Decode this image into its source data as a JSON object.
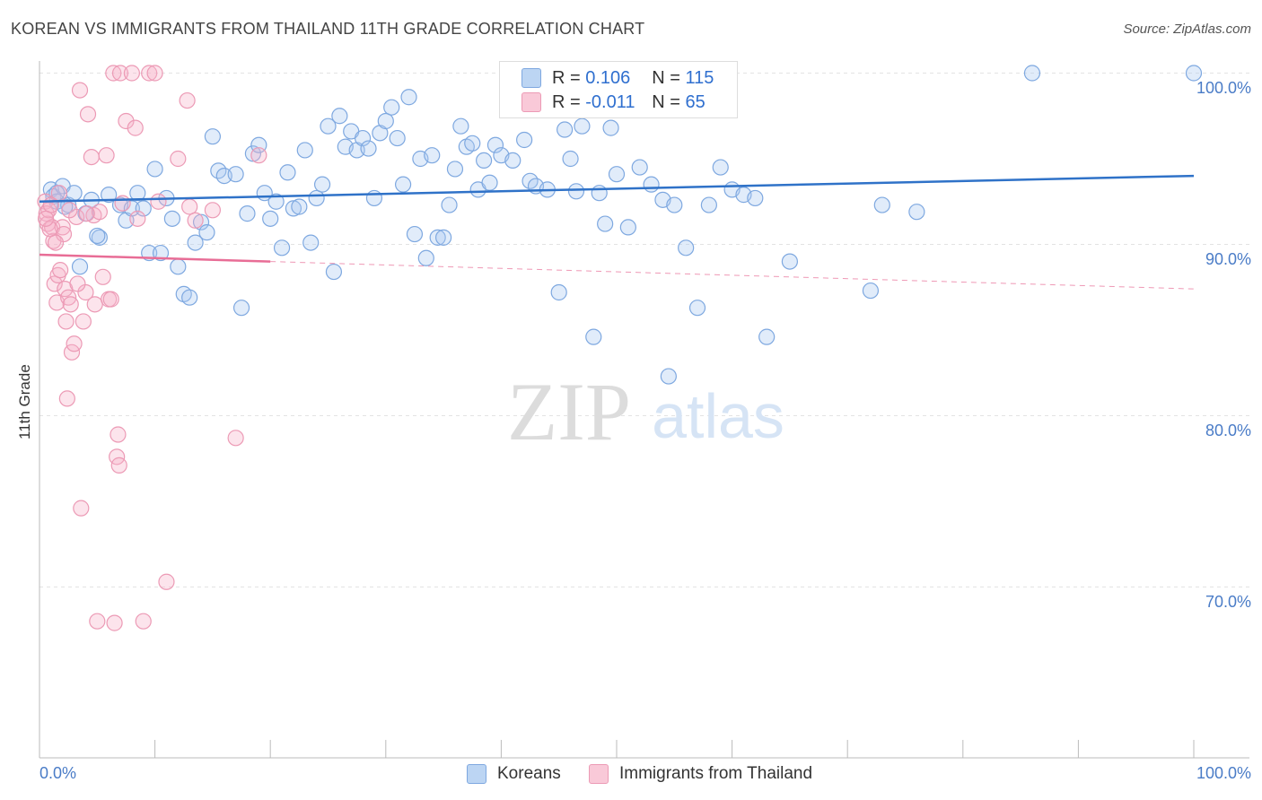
{
  "header": {
    "title": "KOREAN VS IMMIGRANTS FROM THAILAND 11TH GRADE CORRELATION CHART",
    "source": "Source: ZipAtlas.com"
  },
  "watermark": {
    "zip": "ZIP",
    "atlas": "atlas"
  },
  "legend": {
    "r_label": "R =",
    "n_label": "N =",
    "series": [
      {
        "name": "Koreans",
        "r": "0.106",
        "n": "115",
        "color": "#a8c8f0"
      },
      {
        "name": "Immigrants from Thailand",
        "r": "-0.011",
        "n": "65",
        "color": "#f6b3c8"
      }
    ]
  },
  "colors": {
    "blue_stroke": "#7ea8e0",
    "blue_fill": "rgba(168,200,240,0.35)",
    "blue_line": "#2f72c8",
    "pink_stroke": "#ec9ab5",
    "pink_fill": "rgba(246,179,200,0.35)",
    "pink_line": "#e86d96",
    "tick_text": "#4a7cc7"
  },
  "chart_data": {
    "type": "scatter",
    "title": "KOREAN VS IMMIGRANTS FROM THAILAND 11TH GRADE CORRELATION CHART",
    "xlabel": "",
    "ylabel": "11th Grade",
    "xlim": [
      0,
      100
    ],
    "ylim": [
      60,
      101.5
    ],
    "x_tick_labels": [
      "0.0%",
      "100.0%"
    ],
    "y_ticks": [
      {
        "value": 100,
        "label": "100.0%"
      },
      {
        "value": 90,
        "label": "90.0%"
      },
      {
        "value": 80,
        "label": "80.0%"
      },
      {
        "value": 70,
        "label": "70.0%"
      }
    ],
    "grid": "horizontal dashed",
    "legend_position": "top-center",
    "series": [
      {
        "name": "Koreans",
        "trend": {
          "x": [
            0,
            100
          ],
          "y": [
            92.5,
            94.0
          ],
          "style": "solid"
        },
        "points": [
          [
            1,
            93.2
          ],
          [
            1.2,
            92.8
          ],
          [
            1.5,
            92.5
          ],
          [
            2,
            93.4
          ],
          [
            2.5,
            92.3
          ],
          [
            3,
            93.0
          ],
          [
            4,
            91.8
          ],
          [
            4.5,
            92.6
          ],
          [
            5.2,
            90.4
          ],
          [
            6,
            92.9
          ],
          [
            7,
            92.3
          ],
          [
            7.5,
            91.4
          ],
          [
            8,
            92.1
          ],
          [
            8.5,
            93.0
          ],
          [
            9,
            92.1
          ],
          [
            9.5,
            89.5
          ],
          [
            10,
            94.4
          ],
          [
            10.5,
            89.5
          ],
          [
            11,
            92.7
          ],
          [
            11.5,
            91.5
          ],
          [
            12,
            88.7
          ],
          [
            12.5,
            87.1
          ],
          [
            13,
            86.9
          ],
          [
            13.5,
            90.1
          ],
          [
            14,
            91.3
          ],
          [
            14.5,
            90.7
          ],
          [
            15,
            96.3
          ],
          [
            15.5,
            94.3
          ],
          [
            16,
            94.0
          ],
          [
            17,
            94.1
          ],
          [
            17.5,
            86.3
          ],
          [
            18,
            91.8
          ],
          [
            18.5,
            95.3
          ],
          [
            19,
            95.8
          ],
          [
            19.5,
            93.0
          ],
          [
            20,
            91.5
          ],
          [
            20.5,
            92.5
          ],
          [
            21,
            89.8
          ],
          [
            21.5,
            94.2
          ],
          [
            22,
            92.1
          ],
          [
            22.5,
            92.2
          ],
          [
            23,
            95.5
          ],
          [
            23.5,
            90.1
          ],
          [
            24,
            92.7
          ],
          [
            24.5,
            93.5
          ],
          [
            25,
            96.9
          ],
          [
            25.5,
            88.4
          ],
          [
            26,
            97.5
          ],
          [
            26.5,
            95.7
          ],
          [
            27,
            96.6
          ],
          [
            27.5,
            95.5
          ],
          [
            28,
            96.2
          ],
          [
            28.5,
            95.6
          ],
          [
            29,
            92.7
          ],
          [
            29.5,
            96.5
          ],
          [
            30,
            97.2
          ],
          [
            30.5,
            98.0
          ],
          [
            31,
            96.2
          ],
          [
            31.5,
            93.5
          ],
          [
            32,
            98.6
          ],
          [
            32.5,
            90.6
          ],
          [
            33,
            95.0
          ],
          [
            33.5,
            89.2
          ],
          [
            34,
            95.2
          ],
          [
            34.5,
            90.4
          ],
          [
            35,
            90.4
          ],
          [
            35.5,
            92.3
          ],
          [
            36,
            94.4
          ],
          [
            36.5,
            96.9
          ],
          [
            37,
            95.7
          ],
          [
            37.5,
            95.9
          ],
          [
            38,
            93.2
          ],
          [
            38.5,
            94.9
          ],
          [
            39,
            93.6
          ],
          [
            39.5,
            95.8
          ],
          [
            40,
            95.2
          ],
          [
            41,
            94.9
          ],
          [
            42,
            96.1
          ],
          [
            42.5,
            93.7
          ],
          [
            43,
            93.4
          ],
          [
            44,
            93.2
          ],
          [
            45,
            87.2
          ],
          [
            45.5,
            96.7
          ],
          [
            46,
            95.0
          ],
          [
            46.5,
            93.1
          ],
          [
            47,
            96.9
          ],
          [
            48,
            84.6
          ],
          [
            48.5,
            93.0
          ],
          [
            49,
            91.2
          ],
          [
            49.5,
            96.8
          ],
          [
            50,
            94.1
          ],
          [
            51,
            91.0
          ],
          [
            52,
            94.5
          ],
          [
            53,
            93.5
          ],
          [
            54,
            92.6
          ],
          [
            54.5,
            82.3
          ],
          [
            55,
            92.3
          ],
          [
            56,
            89.8
          ],
          [
            57,
            86.3
          ],
          [
            58,
            92.3
          ],
          [
            59,
            94.5
          ],
          [
            60,
            93.2
          ],
          [
            61,
            92.9
          ],
          [
            62,
            92.7
          ],
          [
            63,
            84.6
          ],
          [
            65,
            89.0
          ],
          [
            72,
            87.3
          ],
          [
            73,
            92.3
          ],
          [
            76,
            91.9
          ],
          [
            86,
            100.0
          ],
          [
            100,
            100.0
          ],
          [
            1.5,
            93.0
          ],
          [
            2.2,
            92.2
          ],
          [
            3.5,
            88.7
          ],
          [
            5,
            90.5
          ]
        ]
      },
      {
        "name": "Immigrants from Thailand",
        "trend": {
          "x": [
            0,
            20
          ],
          "y": [
            89.4,
            89.0
          ],
          "style": "solid",
          "dashed_to": [
            100,
            87.4
          ]
        },
        "points": [
          [
            0.5,
            92.5
          ],
          [
            0.6,
            91.8
          ],
          [
            0.7,
            91.2
          ],
          [
            0.8,
            92.0
          ],
          [
            1,
            92.3
          ],
          [
            1.1,
            91.0
          ],
          [
            1.2,
            90.2
          ],
          [
            1.3,
            87.7
          ],
          [
            1.5,
            86.6
          ],
          [
            1.6,
            88.2
          ],
          [
            1.8,
            88.5
          ],
          [
            2,
            91.0
          ],
          [
            2.1,
            90.6
          ],
          [
            2.2,
            87.4
          ],
          [
            2.3,
            85.5
          ],
          [
            2.4,
            81.0
          ],
          [
            2.5,
            86.9
          ],
          [
            2.7,
            86.5
          ],
          [
            2.8,
            83.7
          ],
          [
            3,
            84.2
          ],
          [
            3.2,
            91.6
          ],
          [
            3.5,
            99.0
          ],
          [
            3.6,
            74.6
          ],
          [
            3.8,
            85.5
          ],
          [
            4,
            87.2
          ],
          [
            4.2,
            97.6
          ],
          [
            4.5,
            95.1
          ],
          [
            4.7,
            91.7
          ],
          [
            4.8,
            86.5
          ],
          [
            5,
            68.0
          ],
          [
            5.2,
            91.9
          ],
          [
            5.5,
            88.1
          ],
          [
            5.8,
            95.2
          ],
          [
            6,
            86.8
          ],
          [
            6.2,
            86.8
          ],
          [
            6.4,
            100.0
          ],
          [
            6.5,
            67.9
          ],
          [
            6.7,
            77.6
          ],
          [
            6.8,
            78.9
          ],
          [
            6.9,
            77.1
          ],
          [
            7,
            100.0
          ],
          [
            7.2,
            92.4
          ],
          [
            7.5,
            97.2
          ],
          [
            8,
            100.0
          ],
          [
            8.3,
            96.8
          ],
          [
            8.5,
            91.5
          ],
          [
            9,
            68.0
          ],
          [
            9.5,
            100.0
          ],
          [
            10,
            100.0
          ],
          [
            10.3,
            92.5
          ],
          [
            11,
            70.3
          ],
          [
            12,
            95.0
          ],
          [
            12.8,
            98.4
          ],
          [
            13,
            92.2
          ],
          [
            13.5,
            91.4
          ],
          [
            15,
            92.0
          ],
          [
            17,
            78.7
          ],
          [
            19,
            95.2
          ],
          [
            0.9,
            90.9
          ],
          [
            1.4,
            90.1
          ],
          [
            2.6,
            92.0
          ],
          [
            3.3,
            87.7
          ],
          [
            4.1,
            91.8
          ],
          [
            0.55,
            91.5
          ],
          [
            1.7,
            93.0
          ]
        ]
      }
    ]
  },
  "bottom_legend": [
    "Koreans",
    "Immigrants from Thailand"
  ]
}
